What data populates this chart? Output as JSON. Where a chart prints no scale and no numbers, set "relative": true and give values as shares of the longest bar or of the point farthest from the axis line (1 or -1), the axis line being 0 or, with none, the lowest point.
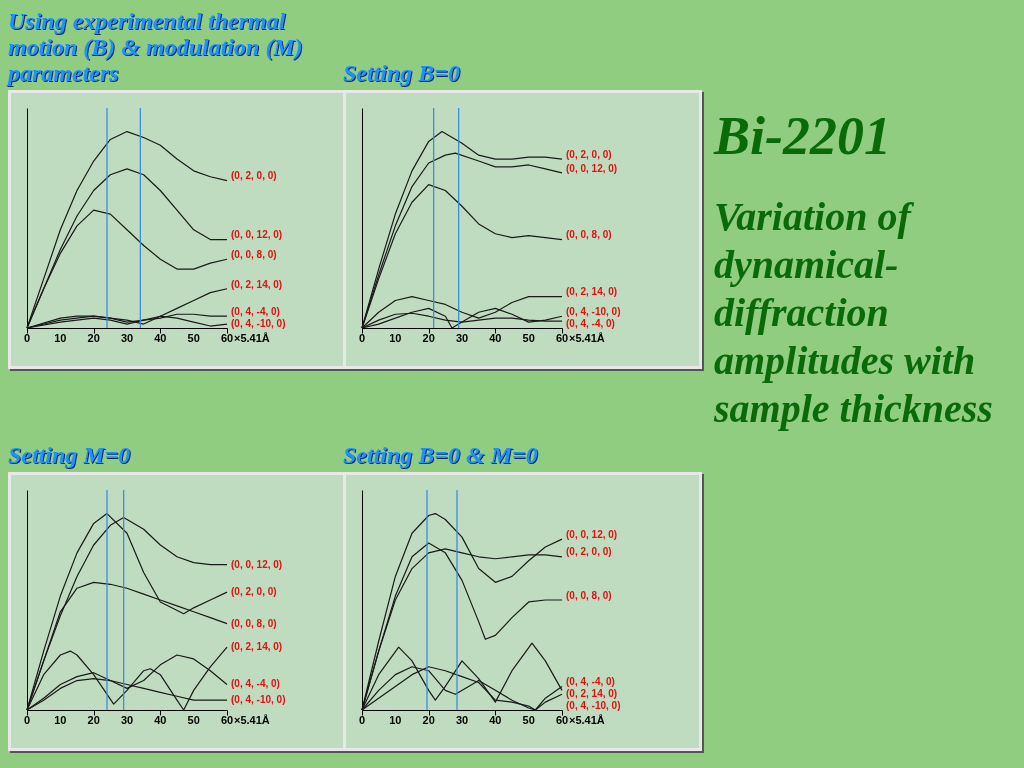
{
  "chart_data": [
    {
      "type": "line",
      "annotations": [
        "Using experimental thermal motion (B) & modulation (M) parameters"
      ],
      "relative": true,
      "tick_labels": "x",
      "xlabel": "×5.41Å",
      "xlim": [
        0,
        60
      ],
      "xticks": [
        0,
        10,
        20,
        30,
        40,
        50,
        60
      ],
      "ref_lines": [
        {
          "axis": "x",
          "value": 24,
          "color": "#3a8ee0"
        },
        {
          "axis": "x",
          "value": 34,
          "color": "#3a8ee0"
        }
      ],
      "series": [
        {
          "name": "(0, 2, 0, 0)",
          "color": "#1a1a1a",
          "x": [
            0,
            5,
            10,
            15,
            20,
            25,
            30,
            35,
            40,
            45,
            50,
            55,
            60
          ],
          "values": [
            0,
            0.25,
            0.5,
            0.7,
            0.85,
            0.96,
            1,
            0.97,
            0.93,
            0.86,
            0.8,
            0.77,
            0.75
          ]
        },
        {
          "name": "(0, 0, 12, 0)",
          "color": "#1a1a1a",
          "x": [
            0,
            5,
            10,
            15,
            20,
            25,
            30,
            35,
            40,
            45,
            50,
            55,
            60
          ],
          "values": [
            0,
            0.2,
            0.4,
            0.57,
            0.7,
            0.78,
            0.81,
            0.78,
            0.7,
            0.6,
            0.5,
            0.45,
            0.45
          ]
        },
        {
          "name": "(0, 0, 8, 0)",
          "color": "#1a1a1a",
          "x": [
            0,
            5,
            10,
            15,
            20,
            25,
            30,
            35,
            40,
            45,
            50,
            55,
            60
          ],
          "values": [
            0,
            0.2,
            0.38,
            0.52,
            0.6,
            0.58,
            0.5,
            0.42,
            0.35,
            0.3,
            0.3,
            0.33,
            0.35
          ]
        },
        {
          "name": "(0, 2, 14, 0)",
          "color": "#1a1a1a",
          "x": [
            0,
            10,
            20,
            30,
            35,
            40,
            45,
            50,
            55,
            60
          ],
          "values": [
            0,
            0.04,
            0.06,
            0.04,
            0.02,
            0.06,
            0.1,
            0.14,
            0.18,
            0.2
          ]
        },
        {
          "name": "(0, 4, -4, 0)",
          "color": "#1a1a1a",
          "x": [
            0,
            10,
            15,
            20,
            25,
            30,
            40,
            45,
            50,
            55,
            60
          ],
          "values": [
            0,
            0.05,
            0.06,
            0.06,
            0.05,
            0.03,
            0.05,
            0.07,
            0.07,
            0.06,
            0.06
          ]
        },
        {
          "name": "(0, 4, -10, 0)",
          "color": "#1a1a1a",
          "x": [
            0,
            10,
            20,
            25,
            30,
            35,
            40,
            45,
            50,
            55,
            60
          ],
          "values": [
            0,
            0.03,
            0.05,
            0.04,
            0.02,
            0.04,
            0.06,
            0.05,
            0.03,
            0.01,
            0.02
          ]
        }
      ]
    },
    {
      "type": "line",
      "annotations": [
        "Setting B=0"
      ],
      "relative": true,
      "tick_labels": "x",
      "xlabel": "×5.41Å",
      "xlim": [
        0,
        60
      ],
      "xticks": [
        0,
        10,
        20,
        30,
        40,
        50,
        60
      ],
      "ref_lines": [
        {
          "axis": "x",
          "value": 21.5,
          "color": "#3a8ee0"
        },
        {
          "axis": "x",
          "value": 29,
          "color": "#3a8ee0"
        }
      ],
      "series": [
        {
          "name": "(0, 2, 0, 0)",
          "color": "#1a1a1a",
          "x": [
            0,
            5,
            10,
            15,
            20,
            24,
            30,
            35,
            40,
            45,
            50,
            55,
            60
          ],
          "values": [
            0,
            0.3,
            0.58,
            0.8,
            0.95,
            1,
            0.94,
            0.88,
            0.86,
            0.86,
            0.87,
            0.87,
            0.86
          ]
        },
        {
          "name": "(0, 0, 12, 0)",
          "color": "#1a1a1a",
          "x": [
            0,
            5,
            10,
            15,
            20,
            25,
            28,
            35,
            40,
            45,
            50,
            55,
            60
          ],
          "values": [
            0,
            0.27,
            0.52,
            0.72,
            0.84,
            0.88,
            0.89,
            0.85,
            0.82,
            0.82,
            0.83,
            0.81,
            0.79
          ]
        },
        {
          "name": "(0, 0, 8, 0)",
          "color": "#1a1a1a",
          "x": [
            0,
            5,
            10,
            15,
            20,
            25,
            30,
            35,
            40,
            45,
            50,
            55,
            60
          ],
          "values": [
            0,
            0.25,
            0.48,
            0.64,
            0.73,
            0.7,
            0.62,
            0.53,
            0.48,
            0.46,
            0.47,
            0.46,
            0.45
          ]
        },
        {
          "name": "(0, 2, 14, 0)",
          "color": "#1a1a1a",
          "x": [
            0,
            5,
            10,
            15,
            20,
            25,
            30,
            35,
            40,
            45,
            50,
            55,
            60
          ],
          "values": [
            0,
            0.08,
            0.14,
            0.16,
            0.14,
            0.12,
            0.08,
            0.05,
            0.08,
            0.13,
            0.16,
            0.16,
            0.16
          ]
        },
        {
          "name": "(0, 4, -10, 0)",
          "color": "#1a1a1a",
          "x": [
            0,
            5,
            10,
            15,
            20,
            25,
            27,
            30,
            35,
            40,
            45,
            50,
            55,
            60
          ],
          "values": [
            0,
            0.02,
            0.05,
            0.08,
            0.1,
            0.06,
            0,
            0.03,
            0.08,
            0.1,
            0.07,
            0.03,
            0.04,
            0.06
          ]
        },
        {
          "name": "(0, 4, -4, 0)",
          "color": "#1a1a1a",
          "x": [
            0,
            5,
            10,
            15,
            20,
            25,
            30,
            35,
            40,
            45,
            50,
            55,
            60
          ],
          "values": [
            0,
            0.04,
            0.07,
            0.075,
            0.06,
            0.04,
            0.03,
            0.04,
            0.05,
            0.05,
            0.04,
            0.035,
            0.035
          ]
        }
      ]
    },
    {
      "type": "line",
      "annotations": [
        "Setting M=0"
      ],
      "relative": true,
      "tick_labels": "x",
      "xlabel": "×5.41Å",
      "xlim": [
        0,
        60
      ],
      "xticks": [
        0,
        10,
        20,
        30,
        40,
        50,
        60
      ],
      "ref_lines": [
        {
          "axis": "x",
          "value": 24,
          "color": "#3a8ee0"
        },
        {
          "axis": "x",
          "value": 29,
          "color": "#3a8ee0"
        }
      ],
      "series": [
        {
          "name": "(0, 2, 0, 0)",
          "color": "#1a1a1a",
          "x": [
            0,
            5,
            10,
            15,
            20,
            24,
            30,
            35,
            40,
            47,
            50,
            55,
            60
          ],
          "values": [
            0,
            0.3,
            0.58,
            0.8,
            0.95,
            1,
            0.9,
            0.7,
            0.55,
            0.49,
            0.52,
            0.56,
            0.6
          ]
        },
        {
          "name": "(0, 0, 12, 0)",
          "color": "#1a1a1a",
          "x": [
            0,
            5,
            10,
            15,
            20,
            25,
            29,
            35,
            40,
            45,
            50,
            55,
            60
          ],
          "values": [
            0,
            0.25,
            0.48,
            0.68,
            0.84,
            0.94,
            0.98,
            0.92,
            0.84,
            0.78,
            0.75,
            0.74,
            0.74
          ]
        },
        {
          "name": "(0, 0, 8, 0)",
          "color": "#1a1a1a",
          "x": [
            0,
            5,
            10,
            15,
            20,
            25,
            30,
            35,
            40,
            45,
            50,
            55,
            60
          ],
          "values": [
            0,
            0.25,
            0.5,
            0.62,
            0.65,
            0.64,
            0.62,
            0.59,
            0.56,
            0.53,
            0.5,
            0.47,
            0.44
          ]
        },
        {
          "name": "(0, 2, 14, 0)",
          "color": "#1a1a1a",
          "x": [
            0,
            5,
            10,
            13,
            15,
            20,
            26,
            30,
            35,
            37,
            40,
            45,
            47,
            50,
            55,
            60
          ],
          "values": [
            0,
            0.18,
            0.28,
            0.3,
            0.28,
            0.18,
            0.03,
            0.1,
            0.2,
            0.21,
            0.18,
            0.05,
            0,
            0.1,
            0.22,
            0.32
          ]
        },
        {
          "name": "(0, 4, -4, 0)",
          "color": "#1a1a1a",
          "x": [
            0,
            5,
            10,
            15,
            20,
            25,
            30,
            35,
            40,
            45,
            50,
            55,
            60
          ],
          "values": [
            0,
            0.06,
            0.13,
            0.17,
            0.19,
            0.15,
            0.11,
            0.15,
            0.23,
            0.28,
            0.26,
            0.2,
            0.13
          ]
        },
        {
          "name": "(0, 4, -10, 0)",
          "color": "#1a1a1a",
          "x": [
            0,
            5,
            10,
            15,
            20,
            25,
            30,
            35,
            40,
            45,
            50,
            55,
            60
          ],
          "values": [
            0,
            0.05,
            0.11,
            0.15,
            0.16,
            0.15,
            0.13,
            0.11,
            0.09,
            0.07,
            0.05,
            0.05,
            0.05
          ]
        }
      ]
    },
    {
      "type": "line",
      "annotations": [
        "Setting B=0 & M=0"
      ],
      "relative": true,
      "tick_labels": "x",
      "xlabel": "×5.41Å",
      "xlim": [
        0,
        60
      ],
      "xticks": [
        0,
        10,
        20,
        30,
        40,
        50,
        60
      ],
      "ref_lines": [
        {
          "axis": "x",
          "value": 19.5,
          "color": "#3a8ee0"
        },
        {
          "axis": "x",
          "value": 28.5,
          "color": "#3a8ee0"
        }
      ],
      "series": [
        {
          "name": "(0, 0, 12, 0)",
          "color": "#1a1a1a",
          "x": [
            0,
            5,
            10,
            15,
            20,
            22,
            25,
            30,
            35,
            40,
            45,
            50,
            55,
            60
          ],
          "values": [
            0,
            0.35,
            0.68,
            0.9,
            0.99,
            1,
            0.97,
            0.88,
            0.72,
            0.65,
            0.68,
            0.76,
            0.83,
            0.87
          ]
        },
        {
          "name": "(0, 2, 0, 0)",
          "color": "#1a1a1a",
          "x": [
            0,
            5,
            10,
            15,
            20,
            25,
            30,
            35,
            40,
            45,
            50,
            55,
            60
          ],
          "values": [
            0,
            0.3,
            0.56,
            0.72,
            0.8,
            0.82,
            0.8,
            0.78,
            0.77,
            0.78,
            0.79,
            0.79,
            0.78
          ]
        },
        {
          "name": "(0, 0, 8, 0)",
          "color": "#1a1a1a",
          "x": [
            0,
            5,
            10,
            15,
            20,
            25,
            30,
            35,
            37,
            40,
            45,
            50,
            55,
            60
          ],
          "values": [
            0,
            0.3,
            0.58,
            0.78,
            0.85,
            0.8,
            0.66,
            0.45,
            0.36,
            0.38,
            0.47,
            0.55,
            0.56,
            0.56
          ]
        },
        {
          "name": "(0, 2, 14, 0)",
          "color": "#1a1a1a",
          "x": [
            0,
            5,
            11,
            15,
            20,
            22,
            25,
            30,
            35,
            40,
            45,
            51,
            55,
            60
          ],
          "values": [
            0,
            0.18,
            0.32,
            0.25,
            0.1,
            0.05,
            0.12,
            0.25,
            0.16,
            0.04,
            0.2,
            0.34,
            0.25,
            0.1
          ]
        },
        {
          "name": "(0, 4, -4, 0)",
          "color": "#1a1a1a",
          "x": [
            0,
            5,
            10,
            15,
            20,
            25,
            28,
            32,
            35,
            40,
            45,
            50,
            52,
            55,
            60
          ],
          "values": [
            0,
            0.1,
            0.18,
            0.22,
            0.2,
            0.1,
            0.08,
            0.12,
            0.15,
            0.1,
            0.05,
            0.01,
            0,
            0.06,
            0.12
          ]
        },
        {
          "name": "(0, 4, -10, 0)",
          "color": "#1a1a1a",
          "x": [
            0,
            10,
            15,
            20,
            25,
            30,
            35,
            40,
            45,
            50,
            52,
            55,
            60
          ],
          "values": [
            0,
            0.12,
            0.18,
            0.22,
            0.2,
            0.17,
            0.14,
            0.05,
            0.04,
            0.02,
            0,
            0.04,
            0.08
          ]
        }
      ]
    },
    {
      "type": "other",
      "title": "Bi-2201",
      "subtitle": "Variation of dynamical-diffraction amplitudes with sample thickness"
    }
  ]
}
